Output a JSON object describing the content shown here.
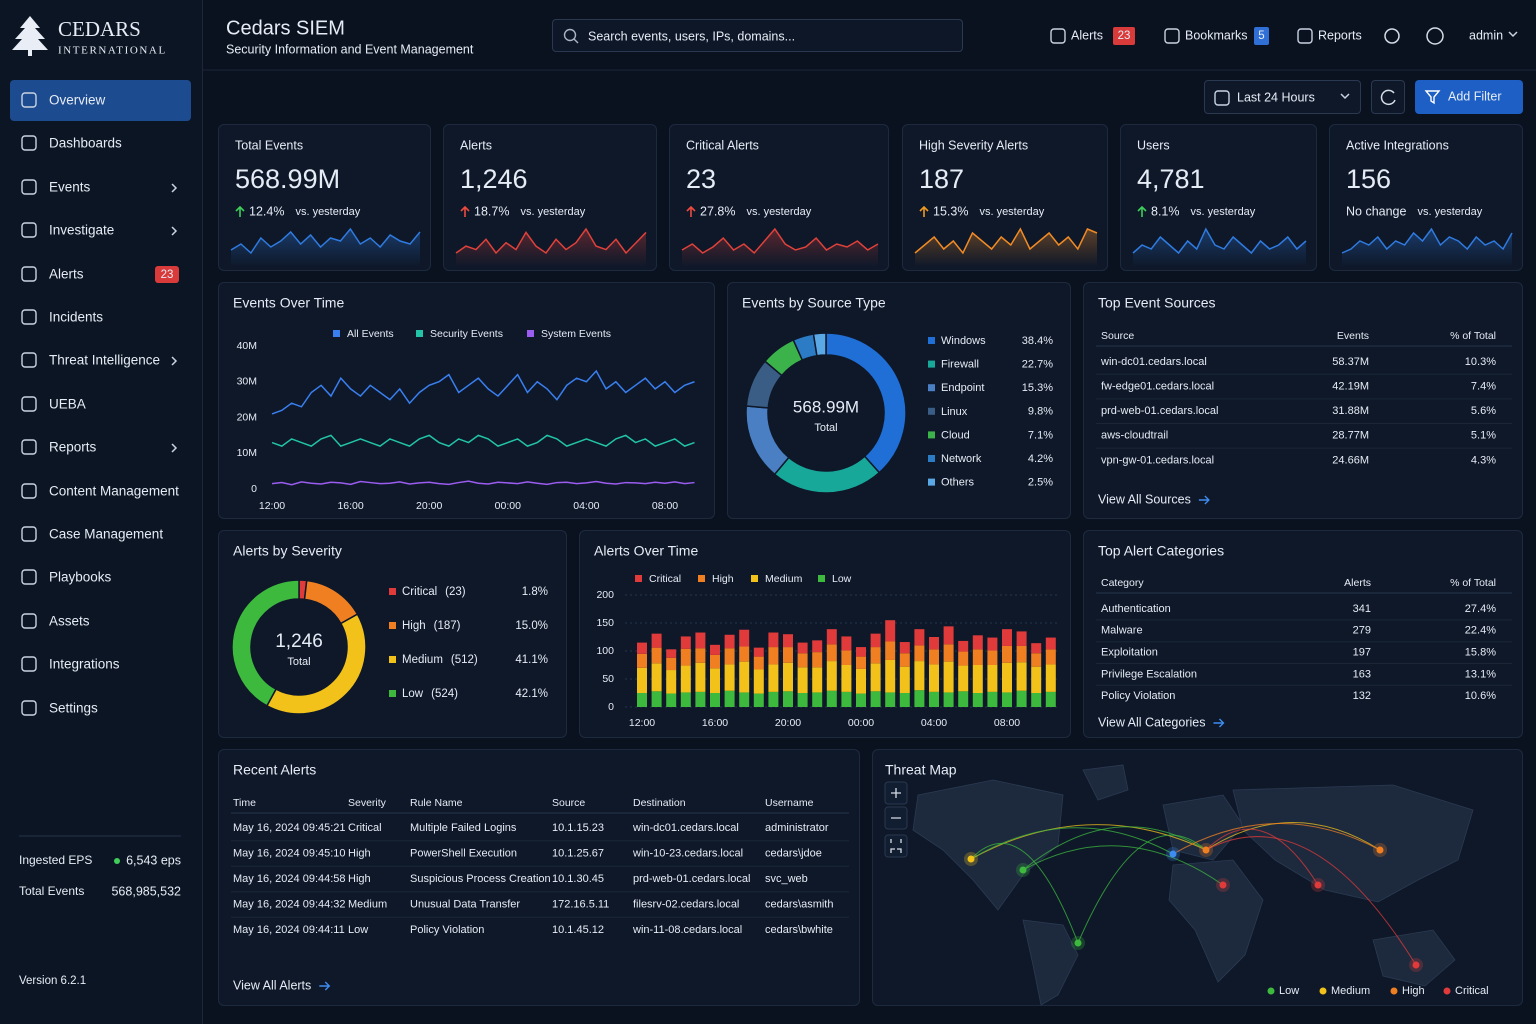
{
  "brand": {
    "name": "CEDARS",
    "tagline": "INTERNATIONAL"
  },
  "sidebar": {
    "nav": [
      {
        "label": "Overview",
        "active": true
      },
      {
        "label": "Dashboards"
      },
      {
        "label": "Events",
        "submenu": true
      },
      {
        "label": "Investigate",
        "submenu": true
      },
      {
        "label": "Alerts",
        "badge": "23"
      },
      {
        "label": "Incidents"
      },
      {
        "label": "Threat Intelligence",
        "submenu": true
      },
      {
        "label": "UEBA"
      },
      {
        "label": "Reports",
        "submenu": true
      },
      {
        "label": "Content Management"
      },
      {
        "label": "Case Management"
      },
      {
        "label": "Playbooks"
      },
      {
        "label": "Assets"
      },
      {
        "label": "Integrations"
      },
      {
        "label": "Settings"
      }
    ],
    "stats": [
      {
        "label": "Ingested EPS",
        "value": "6,543 eps",
        "status_dot": true
      },
      {
        "label": "Total Events",
        "value": "568,985,532"
      }
    ],
    "version": "Version 6.2.1"
  },
  "header": {
    "title": "Cedars SIEM",
    "subtitle": "Security Information and Event Management",
    "search_placeholder": "Search events, users, IPs, domains...",
    "links": [
      {
        "label": "Alerts",
        "badge": "23",
        "badge_color": "#d93a3a"
      },
      {
        "label": "Bookmarks",
        "badge": "5",
        "badge_color": "#2f6fd6"
      },
      {
        "label": "Reports"
      }
    ],
    "user": "admin"
  },
  "toolbar": {
    "time_range": "Last 24 Hours",
    "add_filter": "Add Filter"
  },
  "kpis": [
    {
      "title": "Total Events",
      "value": "568.99M",
      "change": "12.4%",
      "trend": "up",
      "trend_color": "#3ecf5a",
      "compare": "vs. yesterday",
      "sparkline": {
        "color": "#2f7be0",
        "values": [
          10,
          12,
          9,
          14,
          11,
          13,
          16,
          12,
          15,
          11,
          14,
          13,
          17,
          12,
          14,
          11,
          15,
          13,
          12,
          16
        ]
      }
    },
    {
      "title": "Alerts",
      "value": "1,246",
      "change": "18.7%",
      "trend": "up",
      "trend_color": "#ee4a3e",
      "compare": "vs. yesterday",
      "sparkline": {
        "color": "#e0413a",
        "values": [
          9,
          11,
          10,
          13,
          9,
          12,
          10,
          15,
          11,
          9,
          13,
          10,
          12,
          16,
          11,
          10,
          13,
          9,
          12,
          15
        ]
      }
    },
    {
      "title": "Critical Alerts",
      "value": "23",
      "change": "27.8%",
      "trend": "up",
      "trend_color": "#ee4a3e",
      "compare": "vs. yesterday",
      "sparkline": {
        "color": "#e0413a",
        "values": [
          10,
          12,
          9,
          11,
          14,
          10,
          12,
          9,
          13,
          17,
          12,
          10,
          11,
          14,
          10,
          12,
          11,
          13,
          10,
          12
        ]
      }
    },
    {
      "title": "High Severity Alerts",
      "value": "187",
      "change": "15.3%",
      "trend": "up",
      "trend_color": "#f09a22",
      "compare": "vs. yesterday",
      "sparkline": {
        "color": "#f08a24",
        "values": [
          9,
          11,
          13,
          10,
          12,
          9,
          14,
          12,
          10,
          13,
          11,
          15,
          10,
          12,
          14,
          11,
          13,
          10,
          15,
          14
        ]
      }
    },
    {
      "title": "Users",
      "value": "4,781",
      "change": "8.1%",
      "trend": "up",
      "trend_color": "#3ecf5a",
      "compare": "vs. yesterday",
      "sparkline": {
        "color": "#2f7be0",
        "values": [
          10,
          12,
          11,
          14,
          12,
          10,
          13,
          11,
          16,
          12,
          11,
          14,
          12,
          10,
          13,
          11,
          12,
          14,
          11,
          13
        ]
      }
    },
    {
      "title": "Active Integrations",
      "value": "156",
      "change": "No change",
      "trend": "none",
      "trend_color": "#d6dce6",
      "compare": "vs. yesterday",
      "sparkline": {
        "color": "#2f7be0",
        "values": [
          10,
          11,
          13,
          12,
          14,
          11,
          13,
          12,
          15,
          13,
          16,
          12,
          14,
          13,
          11,
          14,
          12,
          13,
          11,
          15
        ]
      }
    }
  ],
  "chart_data": [
    {
      "type": "line",
      "title": "Events Over Time",
      "categories": [
        "12:00",
        null,
        null,
        null,
        null,
        null,
        null,
        null,
        "16:00",
        null,
        null,
        null,
        null,
        null,
        null,
        null,
        "20:00",
        null,
        null,
        null,
        null,
        null,
        null,
        null,
        "00:00",
        null,
        null,
        null,
        null,
        null,
        null,
        null,
        "04:00",
        null,
        null,
        null,
        null,
        null,
        null,
        null,
        "08:00",
        null,
        null,
        null
      ],
      "series": [
        {
          "name": "All Events",
          "color": "#3a7ff0",
          "values": [
            21,
            22,
            24,
            23,
            27,
            29,
            26,
            31,
            28,
            26,
            29,
            27,
            25,
            28,
            24,
            27,
            29,
            30,
            32,
            27,
            29,
            31,
            28,
            26,
            29,
            32,
            27,
            30,
            28,
            25,
            29,
            31,
            30,
            33,
            28,
            30,
            27,
            29,
            31,
            28,
            30,
            27,
            29,
            30
          ]
        },
        {
          "name": "Security Events",
          "color": "#22c3a6",
          "values": [
            13,
            12,
            14,
            13,
            12,
            14,
            15,
            12,
            13,
            14,
            13,
            12,
            14,
            13,
            12,
            14,
            15,
            13,
            12,
            14,
            13,
            15,
            14,
            12,
            13,
            14,
            12,
            13,
            15,
            14,
            12,
            13,
            14,
            13,
            12,
            14,
            15,
            13,
            14,
            12,
            13,
            14,
            12,
            13
          ]
        },
        {
          "name": "System Events",
          "color": "#9b5cf0",
          "values": [
            1.5,
            1.8,
            1.2,
            2.0,
            1.6,
            1.4,
            1.9,
            1.7,
            1.3,
            2.1,
            1.8,
            1.5,
            1.6,
            2.0,
            1.4,
            1.7,
            1.9,
            1.5,
            1.3,
            1.8,
            2.2,
            1.6,
            1.4,
            1.9,
            1.7,
            1.5,
            2.0,
            1.6,
            1.3,
            1.8,
            1.9,
            1.5,
            1.7,
            2.1,
            1.6,
            1.4,
            1.8,
            1.7,
            1.5,
            1.9,
            1.6,
            2.0,
            1.5,
            1.8
          ]
        }
      ],
      "ylim": [
        0,
        40
      ],
      "yticks": [
        0,
        {
          "value": 10,
          "label": "10M"
        },
        {
          "value": 20,
          "label": "20M"
        },
        {
          "value": 30,
          "label": "30M"
        },
        {
          "value": 40,
          "label": "40M"
        }
      ],
      "grid": false,
      "legend": "top"
    },
    {
      "type": "donut",
      "title": "Events by Source Type",
      "categories": [
        "Windows",
        "Firewall",
        "Endpoint",
        "Linux",
        "Cloud",
        "Network",
        "Others"
      ],
      "values": [
        38.4,
        22.7,
        15.3,
        9.8,
        7.1,
        4.2,
        2.5
      ],
      "value_labels": [
        "38.4%",
        "22.7%",
        "15.3%",
        "9.8%",
        "7.1%",
        "4.2%",
        "2.5%"
      ],
      "colors": [
        "#1f6fd6",
        "#17a89a",
        "#4a7fc4",
        "#3a5d85",
        "#3cb34a",
        "#2b7cc4",
        "#5aa9e6"
      ],
      "center_value": "568.99M",
      "center_label": "Total"
    },
    {
      "type": "donut",
      "title": "Alerts by Severity",
      "categories": [
        "Critical",
        "High",
        "Medium",
        "Low"
      ],
      "values": [
        23,
        187,
        512,
        524
      ],
      "count_labels": [
        "(23)",
        "(187)",
        "(512)",
        "(524)"
      ],
      "percent_labels": [
        "1.8%",
        "15.0%",
        "41.1%",
        "42.1%"
      ],
      "colors": [
        "#e03a3a",
        "#f07f22",
        "#f2c21b",
        "#3db93d"
      ],
      "center_value": "1,246",
      "center_label": "Total"
    },
    {
      "type": "stacked_bar",
      "title": "Alerts Over Time",
      "categories": [
        "12:00",
        null,
        null,
        null,
        null,
        "16:00",
        null,
        null,
        null,
        null,
        "20:00",
        null,
        null,
        null,
        null,
        "00:00",
        null,
        null,
        null,
        null,
        "04:00",
        null,
        null,
        null,
        null,
        "08:00",
        null,
        null,
        null
      ],
      "series": [
        {
          "name": "Critical",
          "color": "#e03a3a",
          "values": [
            20,
            25,
            15,
            22,
            28,
            18,
            24,
            30,
            16,
            26,
            23,
            19,
            21,
            27,
            25,
            17,
            24,
            38,
            20,
            29,
            22,
            32,
            19,
            25,
            23,
            30,
            26,
            18,
            21
          ]
        },
        {
          "name": "High",
          "color": "#f07f22",
          "values": [
            25,
            28,
            22,
            30,
            26,
            24,
            29,
            27,
            23,
            31,
            28,
            25,
            27,
            30,
            26,
            22,
            29,
            33,
            24,
            28,
            27,
            31,
            25,
            28,
            26,
            30,
            29,
            24,
            27
          ]
        },
        {
          "name": "Medium",
          "color": "#f2c21b",
          "values": [
            45,
            50,
            42,
            48,
            52,
            44,
            47,
            55,
            43,
            49,
            51,
            46,
            45,
            53,
            48,
            44,
            50,
            58,
            47,
            52,
            49,
            55,
            46,
            50,
            48,
            53,
            51,
            47,
            49
          ]
        },
        {
          "name": "Low",
          "color": "#3db93d",
          "values": [
            25,
            28,
            24,
            26,
            27,
            25,
            29,
            26,
            24,
            27,
            28,
            25,
            26,
            29,
            27,
            24,
            28,
            26,
            25,
            30,
            27,
            26,
            28,
            25,
            27,
            26,
            29,
            25,
            27
          ]
        }
      ],
      "ylim": [
        0,
        200
      ],
      "yticks": [
        0,
        50,
        100,
        150,
        200
      ],
      "grid": true,
      "legend": "top"
    }
  ],
  "top_event_sources": {
    "title": "Top Event Sources",
    "columns": [
      "Source",
      "Events",
      "% of Total"
    ],
    "rows": [
      [
        "win-dc01.cedars.local",
        "58.37M",
        "10.3%"
      ],
      [
        "fw-edge01.cedars.local",
        "42.19M",
        "7.4%"
      ],
      [
        "prd-web-01.cedars.local",
        "31.88M",
        "5.6%"
      ],
      [
        "aws-cloudtrail",
        "28.77M",
        "5.1%"
      ],
      [
        "vpn-gw-01.cedars.local",
        "24.66M",
        "4.3%"
      ]
    ],
    "link": "View All Sources"
  },
  "top_alert_categories": {
    "title": "Top Alert Categories",
    "columns": [
      "Category",
      "Alerts",
      "% of Total"
    ],
    "rows": [
      [
        "Authentication",
        "341",
        "27.4%"
      ],
      [
        "Malware",
        "279",
        "22.4%"
      ],
      [
        "Exploitation",
        "197",
        "15.8%"
      ],
      [
        "Privilege Escalation",
        "163",
        "13.1%"
      ],
      [
        "Policy Violation",
        "132",
        "10.6%"
      ]
    ],
    "link": "View All Categories"
  },
  "recent_alerts": {
    "title": "Recent Alerts",
    "columns": [
      "Time",
      "Severity",
      "Rule Name",
      "Source",
      "Destination",
      "Username"
    ],
    "rows": [
      [
        "May 16, 2024 09:45:21",
        "Critical",
        "Multiple Failed Logins",
        "10.1.15.23",
        "win-dc01.cedars.local",
        "administrator"
      ],
      [
        "May 16, 2024 09:45:10",
        "High",
        "PowerShell Execution",
        "10.1.25.67",
        "win-10-23.cedars.local",
        "cedars\\jdoe"
      ],
      [
        "May 16, 2024 09:44:58",
        "High",
        "Suspicious Process Creation",
        "10.1.30.45",
        "prd-web-01.cedars.local",
        "svc_web"
      ],
      [
        "May 16, 2024 09:44:32",
        "Medium",
        "Unusual Data Transfer",
        "172.16.5.11",
        "filesrv-02.cedars.local",
        "cedars\\asmith"
      ],
      [
        "May 16, 2024 09:44:11",
        "Low",
        "Policy Violation",
        "10.1.45.12",
        "win-11-08.cedars.local",
        "cedars\\bwhite"
      ]
    ],
    "severity_colors": {
      "Critical": "#ee4a3e",
      "High": "#f08a24",
      "Medium": "#f2c21b",
      "Low": "#3fa3e8"
    },
    "link": "View All Alerts"
  },
  "threat_map": {
    "title": "Threat Map",
    "legend": [
      {
        "label": "Low",
        "color": "#3db93d"
      },
      {
        "label": "Medium",
        "color": "#f2c21b"
      },
      {
        "label": "High",
        "color": "#f07f22"
      },
      {
        "label": "Critical",
        "color": "#e03a3a"
      }
    ]
  }
}
